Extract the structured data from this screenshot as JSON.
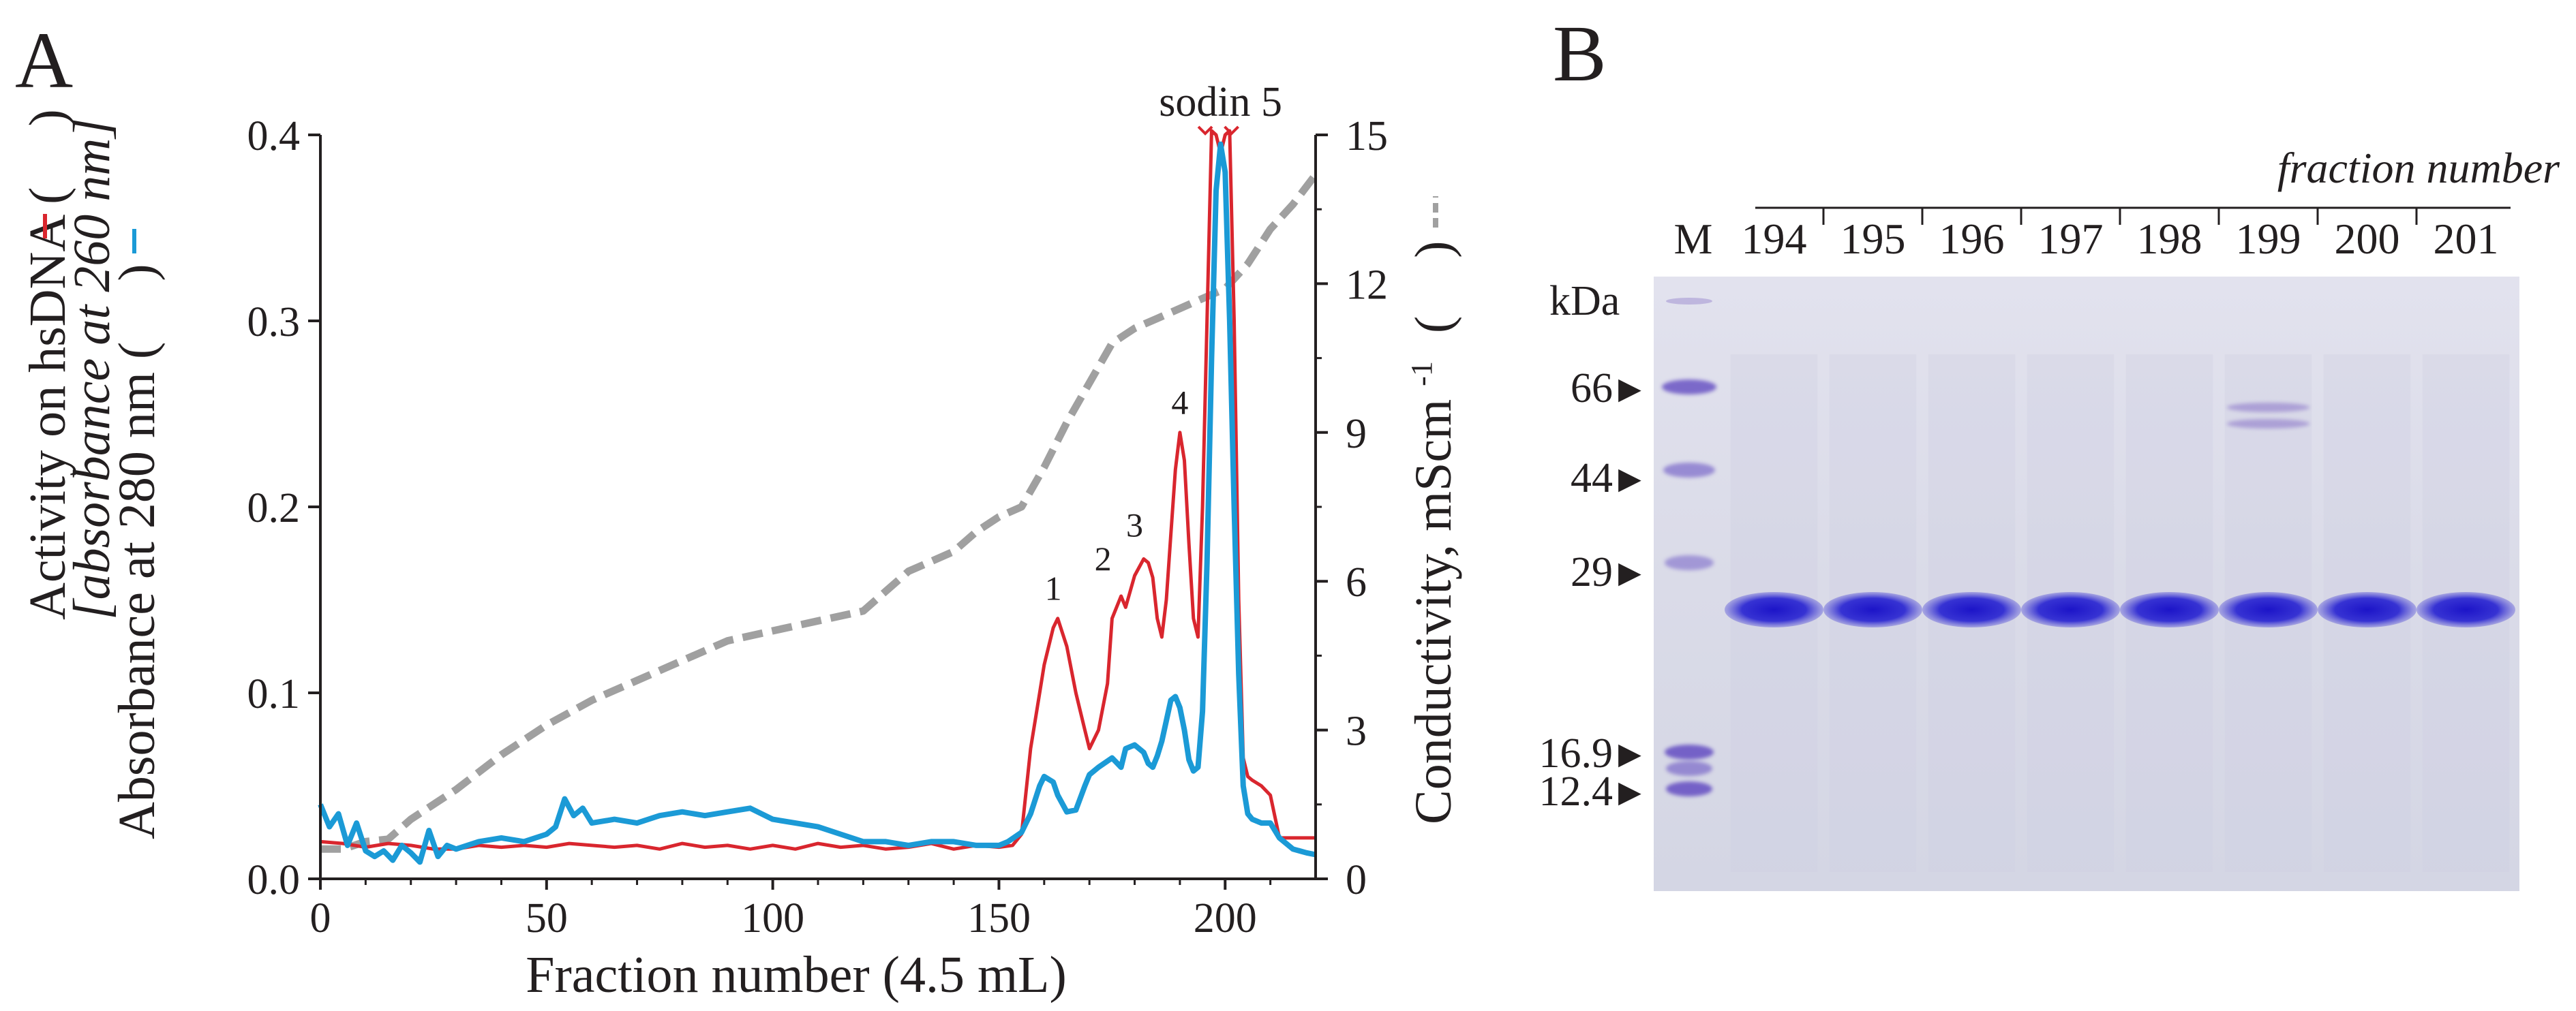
{
  "panel_a": {
    "letter": "A",
    "chart_data": {
      "type": "line",
      "title": "",
      "xlabel": "Fraction number (4.5 mL)",
      "ylabel_left_line1": "Activity on hsDNA (",
      "ylabel_left_line1_end": ")",
      "ylabel_left_line2": "[absorbance at 260 nm]",
      "ylabel_left_line3": "Absorbance at 280 nm (",
      "ylabel_left_line3_end": ")",
      "ylabel_right": "Conductivity, mScm",
      "ylabel_right_sup": "-1",
      "ylabel_right_end": "(",
      "ylabel_right_close": ")",
      "xlim": [
        0,
        220
      ],
      "ylim_left": [
        0,
        0.4
      ],
      "ylim_right": [
        0,
        15
      ],
      "x_ticks": [
        0,
        50,
        100,
        150,
        200
      ],
      "y_ticks_left": [
        "0.0",
        "0.1",
        "0.2",
        "0.3",
        "0.4"
      ],
      "y_ticks_left_values": [
        0,
        0.1,
        0.2,
        0.3,
        0.4
      ],
      "y_ticks_right": [
        0,
        3,
        6,
        9,
        12,
        15
      ],
      "annotations": [
        {
          "text": "1",
          "x": 162,
          "y": 0.15
        },
        {
          "text": "2",
          "x": 173,
          "y": 0.166
        },
        {
          "text": "3",
          "x": 180,
          "y": 0.184
        },
        {
          "text": "4",
          "x": 190,
          "y": 0.25
        },
        {
          "text": "sodin 5",
          "x": 199,
          "y": 0.425
        }
      ],
      "series": [
        {
          "name": "Activity on hsDNA (absorbance at 260 nm)",
          "axis": "left",
          "color": "#d9262e",
          "style": "solid",
          "x": [
            0,
            5,
            10,
            15,
            20,
            25,
            30,
            35,
            40,
            45,
            50,
            55,
            60,
            65,
            70,
            75,
            80,
            85,
            90,
            95,
            100,
            105,
            110,
            115,
            120,
            125,
            130,
            135,
            140,
            145,
            150,
            153,
            155,
            157,
            159,
            160,
            162,
            163,
            165,
            167,
            169,
            170,
            172,
            174,
            175,
            177,
            178,
            180,
            182,
            183,
            184,
            185,
            186,
            187,
            188,
            189,
            190,
            191,
            192,
            193,
            194,
            195,
            196,
            197,
            198,
            199,
            200,
            201,
            202,
            203,
            204,
            205,
            206,
            208,
            210,
            212,
            215,
            220
          ],
          "values": [
            0.02,
            0.019,
            0.017,
            0.019,
            0.018,
            0.016,
            0.016,
            0.018,
            0.017,
            0.018,
            0.017,
            0.019,
            0.018,
            0.017,
            0.018,
            0.016,
            0.019,
            0.017,
            0.018,
            0.016,
            0.018,
            0.016,
            0.019,
            0.017,
            0.018,
            0.016,
            0.017,
            0.019,
            0.016,
            0.018,
            0.017,
            0.018,
            0.024,
            0.07,
            0.1,
            0.115,
            0.135,
            0.14,
            0.125,
            0.1,
            0.08,
            0.07,
            0.08,
            0.105,
            0.14,
            0.152,
            0.146,
            0.163,
            0.172,
            0.17,
            0.162,
            0.14,
            0.13,
            0.15,
            0.185,
            0.22,
            0.24,
            0.225,
            0.18,
            0.14,
            0.13,
            0.2,
            0.3,
            0.41,
            0.4,
            0.39,
            0.4,
            0.41,
            0.3,
            0.15,
            0.065,
            0.055,
            0.053,
            0.05,
            0.045,
            0.022,
            0.022,
            0.022
          ]
        },
        {
          "name": "Absorbance at 280 nm",
          "axis": "left",
          "color": "#1b9ad6",
          "style": "solid",
          "x": [
            0,
            2,
            4,
            6,
            8,
            10,
            12,
            14,
            16,
            18,
            20,
            22,
            24,
            26,
            28,
            30,
            35,
            40,
            45,
            50,
            52,
            54,
            56,
            58,
            60,
            65,
            70,
            75,
            80,
            85,
            90,
            95,
            100,
            105,
            110,
            115,
            120,
            125,
            130,
            135,
            140,
            145,
            150,
            152,
            155,
            157,
            159,
            160,
            162,
            163,
            165,
            167,
            169,
            170,
            172,
            175,
            177,
            178,
            180,
            182,
            183,
            184,
            185,
            186,
            187,
            188,
            189,
            190,
            191,
            192,
            193,
            194,
            195,
            196,
            197,
            198,
            199,
            200,
            201,
            202,
            203,
            204,
            205,
            206,
            208,
            210,
            212,
            215,
            218,
            220
          ],
          "values": [
            0.04,
            0.028,
            0.035,
            0.018,
            0.03,
            0.015,
            0.012,
            0.015,
            0.01,
            0.018,
            0.014,
            0.009,
            0.026,
            0.012,
            0.018,
            0.016,
            0.02,
            0.022,
            0.02,
            0.024,
            0.028,
            0.043,
            0.034,
            0.038,
            0.03,
            0.032,
            0.03,
            0.034,
            0.036,
            0.034,
            0.036,
            0.038,
            0.032,
            0.03,
            0.028,
            0.024,
            0.02,
            0.02,
            0.018,
            0.02,
            0.02,
            0.018,
            0.018,
            0.02,
            0.025,
            0.035,
            0.05,
            0.055,
            0.052,
            0.045,
            0.036,
            0.037,
            0.05,
            0.056,
            0.06,
            0.065,
            0.06,
            0.07,
            0.072,
            0.068,
            0.062,
            0.06,
            0.066,
            0.074,
            0.085,
            0.096,
            0.098,
            0.092,
            0.08,
            0.064,
            0.058,
            0.06,
            0.09,
            0.17,
            0.28,
            0.37,
            0.395,
            0.38,
            0.3,
            0.2,
            0.11,
            0.05,
            0.035,
            0.032,
            0.03,
            0.03,
            0.022,
            0.016,
            0.014,
            0.013
          ]
        },
        {
          "name": "Conductivity",
          "axis": "right",
          "color": "#a0a0a0",
          "style": "dashed",
          "x": [
            0,
            5,
            10,
            15,
            20,
            30,
            40,
            50,
            60,
            70,
            80,
            90,
            100,
            110,
            120,
            125,
            130,
            135,
            140,
            145,
            150,
            155,
            160,
            165,
            170,
            175,
            180,
            185,
            190,
            195,
            200,
            205,
            210,
            215,
            220
          ],
          "values": [
            0.6,
            0.6,
            0.75,
            0.8,
            1.2,
            1.8,
            2.5,
            3.1,
            3.6,
            4.0,
            4.4,
            4.8,
            5.0,
            5.2,
            5.4,
            5.8,
            6.2,
            6.4,
            6.6,
            7.0,
            7.3,
            7.5,
            8.3,
            9.2,
            10.0,
            10.8,
            11.1,
            11.3,
            11.5,
            11.7,
            11.9,
            12.4,
            13.1,
            13.6,
            14.2
          ]
        }
      ]
    }
  },
  "panel_b": {
    "letter": "B",
    "header": "fraction number",
    "marker_lane_label": "M",
    "unit_label": "kDa",
    "lanes": [
      "194",
      "195",
      "196",
      "197",
      "198",
      "199",
      "200",
      "201"
    ],
    "markers": [
      "66",
      "44",
      "29",
      "16.9",
      "12.4"
    ],
    "marker_arrow": "▶",
    "colors": {
      "gel_bg": "#dcdde9",
      "band": "#2a2ad4",
      "band_light": "#8872c8"
    }
  }
}
